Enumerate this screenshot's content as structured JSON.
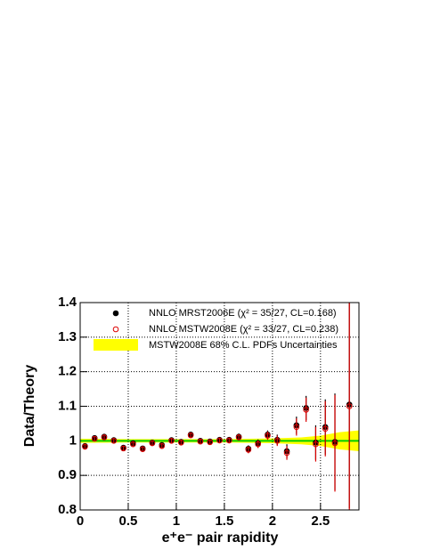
{
  "chart_data": {
    "type": "errorbar",
    "xlabel": "e⁺e⁻ pair rapidity",
    "ylabel": "Data/Theory",
    "x": [
      0.05,
      0.15,
      0.25,
      0.35,
      0.45,
      0.55,
      0.65,
      0.75,
      0.85,
      0.95,
      1.05,
      1.15,
      1.25,
      1.35,
      1.45,
      1.55,
      1.65,
      1.75,
      1.85,
      1.95,
      2.05,
      2.15,
      2.25,
      2.35,
      2.45,
      2.55,
      2.65,
      2.8
    ],
    "series": [
      {
        "name": "NNLO MRST2006E (χ² = 35/27, CL=0.168)",
        "color": "#000000",
        "marker": "filled",
        "values": [
          0.985,
          1.008,
          1.012,
          1.002,
          0.98,
          0.993,
          0.978,
          0.995,
          0.988,
          1.002,
          0.997,
          1.018,
          1.0,
          0.998,
          1.003,
          1.003,
          1.012,
          0.977,
          0.993,
          1.018,
          1.003,
          0.97,
          1.045,
          1.095,
          0.995,
          1.04,
          0.997,
          1.105
        ],
        "errors": [
          0.008,
          0.007,
          0.007,
          0.007,
          0.007,
          0.007,
          0.007,
          0.007,
          0.007,
          0.007,
          0.008,
          0.008,
          0.008,
          0.008,
          0.008,
          0.008,
          0.009,
          0.01,
          0.011,
          0.012,
          0.015,
          0.02,
          0.025,
          0.035,
          0.05,
          0.08,
          0.14,
          0.3
        ]
      },
      {
        "name": "NNLO MSTW2008E (χ² = 33/27, CL=0.238)",
        "color": "#dd0000",
        "marker": "open",
        "values": [
          0.983,
          1.006,
          1.01,
          1.0,
          0.978,
          0.99,
          0.976,
          0.993,
          0.985,
          1.0,
          0.995,
          1.016,
          0.998,
          0.996,
          1.001,
          1.001,
          1.01,
          0.974,
          0.99,
          1.015,
          1.0,
          0.965,
          1.04,
          1.09,
          0.99,
          1.035,
          0.993,
          1.1
        ],
        "errors": [
          0.008,
          0.007,
          0.007,
          0.007,
          0.007,
          0.007,
          0.007,
          0.007,
          0.007,
          0.007,
          0.008,
          0.008,
          0.008,
          0.008,
          0.008,
          0.008,
          0.009,
          0.01,
          0.011,
          0.012,
          0.015,
          0.02,
          0.025,
          0.035,
          0.05,
          0.08,
          0.14,
          0.3
        ]
      }
    ],
    "band": {
      "name": "MSTW2008E 68% C.L. PDFs Uncertainties",
      "color": "#ffff00",
      "x": [
        0,
        0.5,
        1,
        1.5,
        2,
        2.3,
        2.5,
        2.7,
        2.9
      ],
      "lower": [
        0.994,
        0.995,
        0.995,
        0.995,
        0.993,
        0.99,
        0.985,
        0.975,
        0.97
      ],
      "upper": [
        1.006,
        1.005,
        1.005,
        1.005,
        1.007,
        1.01,
        1.015,
        1.025,
        1.03
      ]
    },
    "reference_line": {
      "value": 1,
      "color": "#00cc00"
    },
    "xlim": [
      0,
      2.9
    ],
    "ylim": [
      0.8,
      1.4
    ],
    "xticks": [
      0,
      0.5,
      1,
      1.5,
      2,
      2.5
    ],
    "yticks": [
      0.8,
      0.9,
      1,
      1.1,
      1.2,
      1.3,
      1.4
    ],
    "grid": true
  }
}
